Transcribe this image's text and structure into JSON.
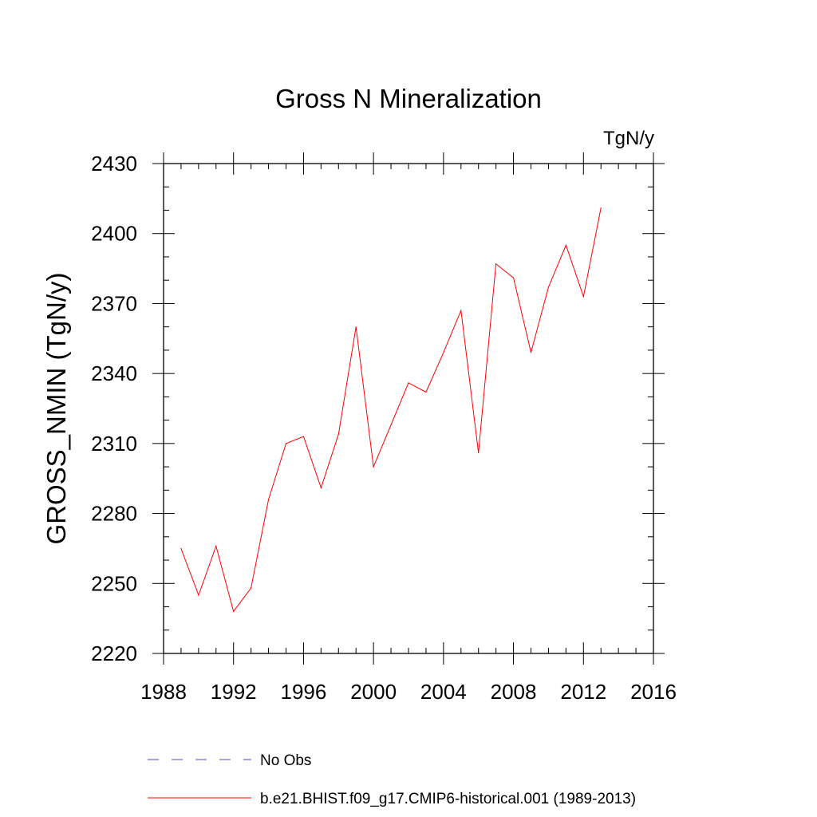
{
  "chart_data": {
    "type": "line",
    "title": "Gross N Mineralization",
    "units_label": "TgN/y",
    "ylabel": "GROSS_NMIN  (TgN/y)",
    "xlabel": "",
    "xlim": [
      1988,
      2016
    ],
    "ylim": [
      2220,
      2430
    ],
    "x_ticks": [
      1988,
      1992,
      1996,
      2000,
      2004,
      2008,
      2012,
      2016
    ],
    "y_ticks": [
      2220,
      2250,
      2280,
      2310,
      2340,
      2370,
      2400,
      2430
    ],
    "x_minor_step": 1,
    "y_minor_step": 10,
    "grid": false,
    "colors": {
      "series": "#ff0000",
      "obs": "#6f6fbf"
    },
    "series": [
      {
        "name": "b.e21.BHIST.f09_g17.CMIP6-historical.001 (1989-2013)",
        "x": [
          1989,
          1990,
          1991,
          1992,
          1993,
          1994,
          1995,
          1996,
          1997,
          1998,
          1999,
          2000,
          2001,
          2002,
          2003,
          2004,
          2005,
          2006,
          2007,
          2008,
          2009,
          2010,
          2011,
          2012,
          2013
        ],
        "values": [
          2265,
          2245,
          2266,
          2238,
          2248,
          2286,
          2310,
          2313,
          2291,
          2314,
          2360,
          2300,
          2318,
          2336,
          2332,
          2349,
          2367,
          2306,
          2387,
          2381,
          2349,
          2377,
          2395,
          2373,
          2411
        ]
      }
    ],
    "legend": [
      {
        "label": "No Obs",
        "style": "dashed"
      },
      {
        "label": "b.e21.BHIST.f09_g17.CMIP6-historical.001 (1989-2013)",
        "style": "solid"
      }
    ]
  }
}
